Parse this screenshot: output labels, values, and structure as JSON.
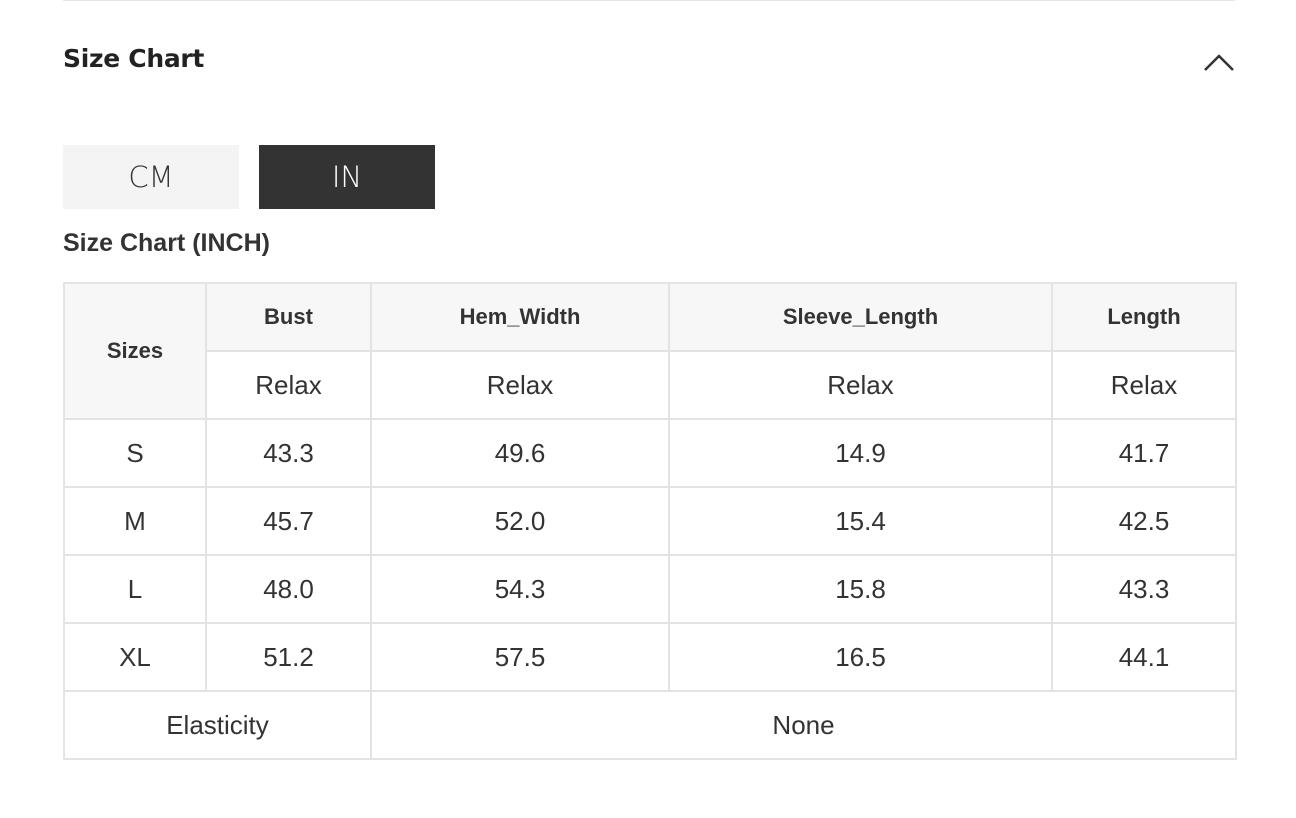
{
  "section": {
    "title": "Size Chart",
    "collapse_icon": "chevron-up-icon"
  },
  "units": {
    "cm": "CM",
    "in": "IN",
    "selected": "IN"
  },
  "chart_title": "Size Chart (INCH)",
  "table": {
    "sizes_header": "Sizes",
    "columns": [
      "Bust",
      "Hem_Width",
      "Sleeve_Length",
      "Length"
    ],
    "fit": [
      "Relax",
      "Relax",
      "Relax",
      "Relax"
    ],
    "rows": [
      {
        "size": "S",
        "values": [
          "43.3",
          "49.6",
          "14.9",
          "41.7"
        ]
      },
      {
        "size": "M",
        "values": [
          "45.7",
          "52.0",
          "15.4",
          "42.5"
        ]
      },
      {
        "size": "L",
        "values": [
          "48.0",
          "54.3",
          "15.8",
          "43.3"
        ]
      },
      {
        "size": "XL",
        "values": [
          "51.2",
          "57.5",
          "16.5",
          "44.1"
        ]
      }
    ],
    "elasticity_label": "Elasticity",
    "elasticity_value": "None"
  }
}
